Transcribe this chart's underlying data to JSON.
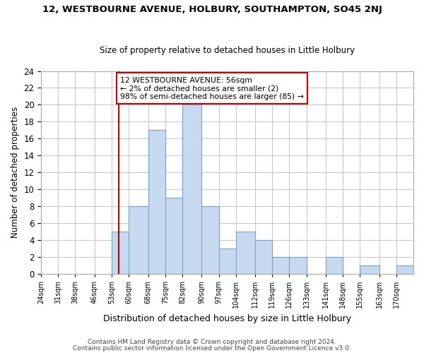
{
  "title1": "12, WESTBOURNE AVENUE, HOLBURY, SOUTHAMPTON, SO45 2NJ",
  "title2": "Size of property relative to detached houses in Little Holbury",
  "xlabel": "Distribution of detached houses by size in Little Holbury",
  "ylabel": "Number of detached properties",
  "bin_labels": [
    "24sqm",
    "31sqm",
    "38sqm",
    "46sqm",
    "53sqm",
    "60sqm",
    "68sqm",
    "75sqm",
    "82sqm",
    "90sqm",
    "97sqm",
    "104sqm",
    "112sqm",
    "119sqm",
    "126sqm",
    "133sqm",
    "141sqm",
    "148sqm",
    "155sqm",
    "163sqm",
    "170sqm"
  ],
  "bin_edges": [
    24,
    31,
    38,
    46,
    53,
    60,
    68,
    75,
    82,
    90,
    97,
    104,
    112,
    119,
    126,
    133,
    141,
    148,
    155,
    163,
    170
  ],
  "bar_heights": [
    0,
    0,
    0,
    0,
    5,
    8,
    17,
    9,
    20,
    8,
    3,
    5,
    4,
    2,
    2,
    0,
    2,
    0,
    1,
    0,
    1
  ],
  "bar_color": "#c6d9f0",
  "bar_edge_color": "#7f9fbf",
  "property_line_x": 56,
  "vline_color": "#cc0000",
  "annotation_line1": "12 WESTBOURNE AVENUE: 56sqm",
  "annotation_line2": "← 2% of detached houses are smaller (2)",
  "annotation_line3": "98% of semi-detached houses are larger (85) →",
  "annotation_box_color": "#ffffff",
  "annotation_box_edge": "#cc0000",
  "ylim": [
    0,
    24
  ],
  "yticks": [
    0,
    2,
    4,
    6,
    8,
    10,
    12,
    14,
    16,
    18,
    20,
    22,
    24
  ],
  "footer1": "Contains HM Land Registry data © Crown copyright and database right 2024.",
  "footer2": "Contains public sector information licensed under the Open Government Licence v3.0.",
  "background_color": "#ffffff",
  "grid_color": "#c8c8c8"
}
